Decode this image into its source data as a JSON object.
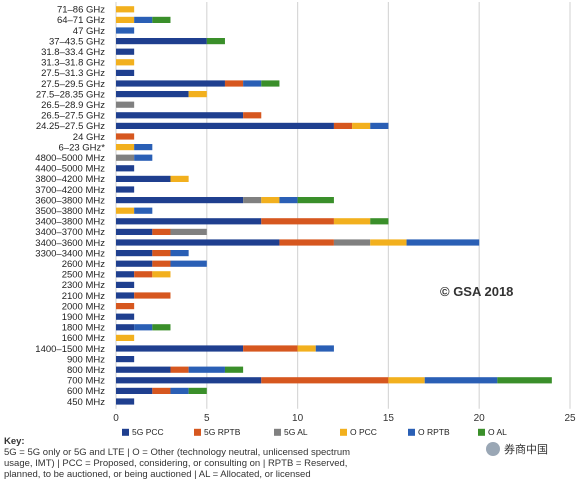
{
  "chart_data": {
    "type": "bar",
    "orientation": "horizontal",
    "stacked": true,
    "categories": [
      "71–86 GHz",
      "64–71 GHz",
      "47 GHz",
      "37–43.5 GHz",
      "31.8–33.4 GHz",
      "31.3–31.8 GHz",
      "27.5–31.3 GHz",
      "27.5–29.5 GHz",
      "27.5–28.35 GHz",
      "26.5–28.9 GHz",
      "26.5–27.5 GHz",
      "24.25–27.5 GHz",
      "24 GHz",
      "6–23 GHz*",
      "4800–5000 MHz",
      "4400–5000 MHz",
      "3800–4200 MHz",
      "3700–4200 MHz",
      "3600–3800 MHz",
      "3500–3800 MHz",
      "3400–3800 MHz",
      "3400–3700 MHz",
      "3400–3600 MHz",
      "3300–3400 MHz",
      "2600 MHz",
      "2500 MHz",
      "2300 MHz",
      "2100 MHz",
      "2000 MHz",
      "1900 MHz",
      "1800 MHz",
      "1600 MHz",
      "1400–1500 MHz",
      "900 MHz",
      "800 MHz",
      "700 MHz",
      "600 MHz",
      "450 MHz"
    ],
    "series": [
      {
        "name": "5G PCC",
        "color": "#1f3f8f",
        "values": [
          0,
          0,
          0,
          5,
          1,
          0,
          1,
          6,
          4,
          0,
          7,
          12,
          0,
          0,
          0,
          1,
          3,
          1,
          7,
          0,
          8,
          2,
          9,
          2,
          2,
          1,
          1,
          1,
          0,
          1,
          1,
          0,
          7,
          1,
          3,
          8,
          2,
          1
        ]
      },
      {
        "name": "5G RPTB",
        "color": "#d6571f",
        "values": [
          0,
          0,
          0,
          0,
          0,
          0,
          0,
          1,
          0,
          0,
          1,
          1,
          1,
          0,
          0,
          0,
          0,
          0,
          0,
          0,
          4,
          1,
          3,
          1,
          1,
          1,
          0,
          2,
          1,
          0,
          0,
          0,
          3,
          0,
          1,
          7,
          1,
          0
        ]
      },
      {
        "name": "5G AL",
        "color": "#808080",
        "values": [
          0,
          0,
          0,
          0,
          0,
          0,
          0,
          0,
          0,
          1,
          0,
          0,
          0,
          0,
          1,
          0,
          0,
          0,
          1,
          0,
          0,
          2,
          2,
          0,
          0,
          0,
          0,
          0,
          0,
          0,
          0,
          0,
          0,
          0,
          0,
          0,
          0,
          0
        ]
      },
      {
        "name": "O PCC",
        "color": "#f2b01e",
        "values": [
          1,
          1,
          0,
          0,
          0,
          1,
          0,
          0,
          1,
          0,
          0,
          1,
          0,
          1,
          0,
          0,
          1,
          0,
          1,
          1,
          2,
          0,
          2,
          0,
          0,
          1,
          0,
          0,
          0,
          0,
          0,
          1,
          1,
          0,
          0,
          2,
          0,
          0
        ]
      },
      {
        "name": "O RPTB",
        "color": "#2a5fb5",
        "values": [
          0,
          1,
          1,
          0,
          0,
          0,
          0,
          1,
          0,
          0,
          0,
          1,
          0,
          1,
          1,
          0,
          0,
          0,
          1,
          1,
          0,
          0,
          4,
          1,
          2,
          0,
          0,
          0,
          0,
          0,
          1,
          0,
          1,
          0,
          2,
          4,
          1,
          0
        ]
      },
      {
        "name": "O AL",
        "color": "#3a8f2a",
        "values": [
          0,
          1,
          0,
          1,
          0,
          0,
          0,
          1,
          0,
          0,
          0,
          0,
          0,
          0,
          0,
          0,
          0,
          0,
          2,
          0,
          1,
          0,
          0,
          0,
          0,
          0,
          0,
          0,
          0,
          0,
          1,
          0,
          0,
          0,
          1,
          3,
          1,
          0
        ]
      }
    ],
    "xlim": [
      0,
      25
    ],
    "xticks": [
      0,
      5,
      10,
      15,
      20,
      25
    ],
    "grid": "vertical",
    "legend_position": "bottom",
    "annotation": "© GSA 2018"
  },
  "key": {
    "title": "Key:",
    "lines": [
      "5G = 5G only or 5G and LTE | O = Other (technology neutral, unlicensed spectrum",
      "usage, IMT) | PCC = Proposed, considering, or consulting on | RPTB = Reserved,",
      "planned, to be auctioned, or being auctioned | AL = Allocated, or licensed"
    ]
  },
  "watermark": {
    "text": "券商中国"
  }
}
